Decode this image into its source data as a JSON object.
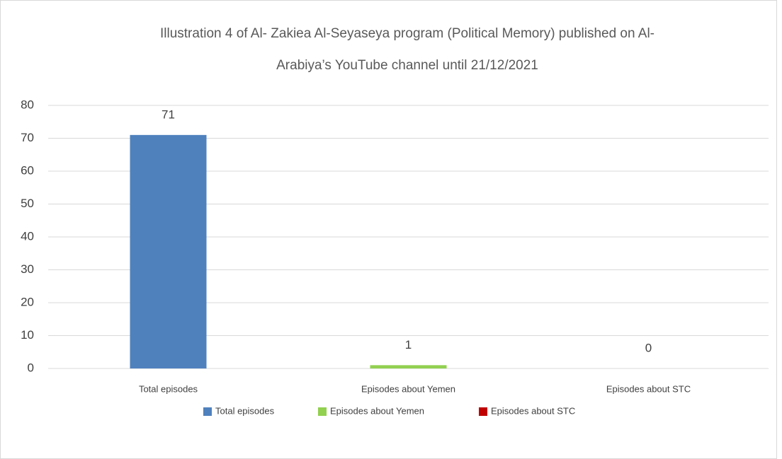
{
  "chart_data": {
    "type": "bar",
    "title": [
      "Illustration 4 of Al- Zakiea Al-Seyaseya program (Political Memory) published on Al-",
      "Arabiya’s YouTube channel until 21/12/2021"
    ],
    "categories": [
      "Total episodes",
      "Episodes about Yemen",
      "Episodes about STC"
    ],
    "series": [
      {
        "name": "Total episodes",
        "color": "#4f81bd",
        "values": [
          71,
          null,
          null
        ]
      },
      {
        "name": "Episodes about Yemen",
        "color": "#92d050",
        "values": [
          null,
          1,
          null
        ]
      },
      {
        "name": "Episodes about STC",
        "color": "#c00000",
        "values": [
          null,
          null,
          0
        ]
      }
    ],
    "ylim": [
      0,
      80
    ],
    "yticks": [
      0,
      10,
      20,
      30,
      40,
      50,
      60,
      70,
      80
    ],
    "grid": true,
    "legend": "bottom"
  }
}
